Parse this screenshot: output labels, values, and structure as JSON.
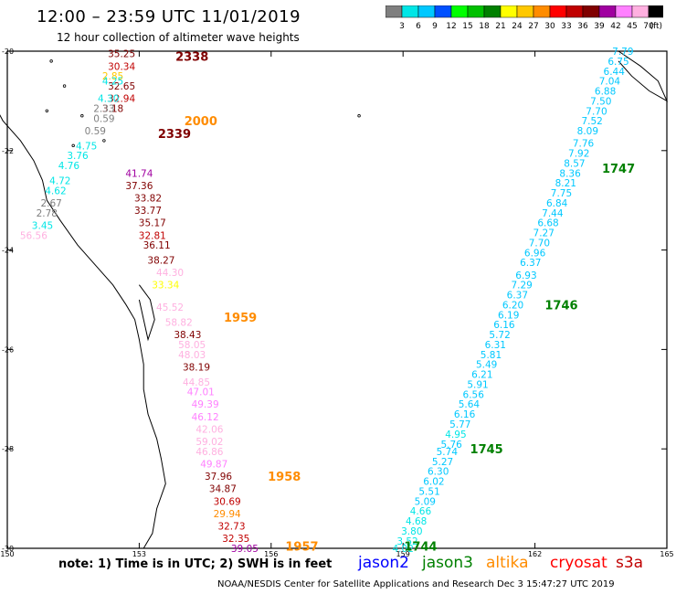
{
  "header": {
    "title": "12:00 – 23:59 UTC 11/01/2019",
    "subtitle": "12 hour collection of altimeter wave heights"
  },
  "scale": {
    "unit": "(ft)",
    "ticks": [
      "3",
      "6",
      "9",
      "12",
      "15",
      "18",
      "21",
      "24",
      "27",
      "30",
      "33",
      "36",
      "39",
      "42",
      "45",
      "70"
    ],
    "colors": [
      "#7f7f7f",
      "#00e6e6",
      "#00c8ff",
      "#0050ff",
      "#00ff00",
      "#00c000",
      "#008000",
      "#ffff00",
      "#ffc800",
      "#ff8c00",
      "#ff0000",
      "#c00000",
      "#800000",
      "#a000a0",
      "#ff80ff",
      "#ffb0e0",
      "#000000"
    ]
  },
  "axes": {
    "x_ticks": [
      "150",
      "153",
      "156",
      "159",
      "162",
      "165"
    ],
    "y_ticks": [
      "-20",
      "-22",
      "-24",
      "-26",
      "-28",
      "-30"
    ]
  },
  "tracks": [
    {
      "label": "2338",
      "color": "#800000",
      "lon": 154.2,
      "lat": -20.1,
      "points": [
        {
          "v": "35.25",
          "c": "#800000",
          "lon": 152.6,
          "lat": -20.05
        },
        {
          "v": "30.34",
          "c": "#c00000",
          "lon": 152.6,
          "lat": -20.3
        },
        {
          "v": "32.65",
          "c": "#800000",
          "lon": 152.6,
          "lat": -20.7
        },
        {
          "v": "32.94",
          "c": "#c00000",
          "lon": 152.6,
          "lat": -20.95
        },
        {
          "v": "3.18",
          "c": "#800000",
          "lon": 152.4,
          "lat": -21.15
        }
      ]
    },
    {
      "label": "2339",
      "color": "#800000",
      "lon": 153.8,
      "lat": -21.65,
      "points": [
        {
          "v": "41.74",
          "c": "#a000a0",
          "lon": 153.0,
          "lat": -22.45
        },
        {
          "v": "37.36",
          "c": "#800000",
          "lon": 153.0,
          "lat": -22.7
        },
        {
          "v": "33.82",
          "c": "#800000",
          "lon": 153.2,
          "lat": -22.95
        },
        {
          "v": "33.77",
          "c": "#800000",
          "lon": 153.2,
          "lat": -23.2
        },
        {
          "v": "35.17",
          "c": "#800000",
          "lon": 153.3,
          "lat": -23.45
        },
        {
          "v": "32.81",
          "c": "#c00000",
          "lon": 153.3,
          "lat": -23.7
        },
        {
          "v": "36.11",
          "c": "#800000",
          "lon": 153.4,
          "lat": -23.9
        },
        {
          "v": "38.27",
          "c": "#800000",
          "lon": 153.5,
          "lat": -24.2
        }
      ]
    },
    {
      "label": "2000",
      "color": "#ff8c00",
      "lon": 154.4,
      "lat": -21.4,
      "points": [
        {
          "v": "2.85",
          "c": "#ffc800",
          "lon": 152.4,
          "lat": -20.5
        },
        {
          "v": "4.25",
          "c": "#00e6e6",
          "lon": 152.4,
          "lat": -20.6
        },
        {
          "v": "4.30",
          "c": "#00e6e6",
          "lon": 152.3,
          "lat": -20.95
        },
        {
          "v": "2.33",
          "c": "#7f7f7f",
          "lon": 152.2,
          "lat": -21.15
        },
        {
          "v": "0.59",
          "c": "#7f7f7f",
          "lon": 152.2,
          "lat": -21.35
        },
        {
          "v": "0.59",
          "c": "#7f7f7f",
          "lon": 152.0,
          "lat": -21.6
        },
        {
          "v": "4.75",
          "c": "#00e6e6",
          "lon": 151.8,
          "lat": -21.9
        },
        {
          "v": "3.76",
          "c": "#00e6e6",
          "lon": 151.6,
          "lat": -22.1
        },
        {
          "v": "4.76",
          "c": "#00e6e6",
          "lon": 151.4,
          "lat": -22.3
        },
        {
          "v": "4.72",
          "c": "#00e6e6",
          "lon": 151.2,
          "lat": -22.6
        },
        {
          "v": "4.62",
          "c": "#00e6e6",
          "lon": 151.1,
          "lat": -22.8
        },
        {
          "v": "2.67",
          "c": "#7f7f7f",
          "lon": 151.0,
          "lat": -23.05
        },
        {
          "v": "2.78",
          "c": "#7f7f7f",
          "lon": 150.9,
          "lat": -23.25
        },
        {
          "v": "3.45",
          "c": "#00e6e6",
          "lon": 150.8,
          "lat": -23.5
        },
        {
          "v": "56.56",
          "c": "#ffb0e0",
          "lon": 150.6,
          "lat": -23.7
        }
      ]
    },
    {
      "label": "1959",
      "color": "#ff8c00",
      "lon": 155.3,
      "lat": -25.35,
      "points": [
        {
          "v": "44.30",
          "c": "#ffb0e0",
          "lon": 153.7,
          "lat": -24.45
        },
        {
          "v": "33.34",
          "c": "#ffff00",
          "lon": 153.6,
          "lat": -24.7
        },
        {
          "v": "45.52",
          "c": "#ffb0e0",
          "lon": 153.7,
          "lat": -25.15
        },
        {
          "v": "58.82",
          "c": "#ffb0e0",
          "lon": 153.9,
          "lat": -25.45
        },
        {
          "v": "38.43",
          "c": "#800000",
          "lon": 154.1,
          "lat": -25.7
        },
        {
          "v": "58.05",
          "c": "#ffb0e0",
          "lon": 154.2,
          "lat": -25.9
        },
        {
          "v": "48.03",
          "c": "#ffb0e0",
          "lon": 154.2,
          "lat": -26.1
        },
        {
          "v": "38.19",
          "c": "#800000",
          "lon": 154.3,
          "lat": -26.35
        },
        {
          "v": "44.85",
          "c": "#ffb0e0",
          "lon": 154.3,
          "lat": -26.65
        },
        {
          "v": "47.01",
          "c": "#ff80ff",
          "lon": 154.4,
          "lat": -26.85
        },
        {
          "v": "49.39",
          "c": "#ff80ff",
          "lon": 154.5,
          "lat": -27.1
        },
        {
          "v": "46.12",
          "c": "#ff80ff",
          "lon": 154.5,
          "lat": -27.35
        },
        {
          "v": "42.06",
          "c": "#ffb0e0",
          "lon": 154.6,
          "lat": -27.6
        },
        {
          "v": "59.02",
          "c": "#ffb0e0",
          "lon": 154.6,
          "lat": -27.85
        },
        {
          "v": "46.86",
          "c": "#ffb0e0",
          "lon": 154.6,
          "lat": -28.05
        },
        {
          "v": "49.87",
          "c": "#ff80ff",
          "lon": 154.7,
          "lat": -28.3
        }
      ]
    },
    {
      "label": "1958",
      "color": "#ff8c00",
      "lon": 156.3,
      "lat": -28.55,
      "points": [
        {
          "v": "37.96",
          "c": "#800000",
          "lon": 154.8,
          "lat": -28.55
        },
        {
          "v": "34.87",
          "c": "#800000",
          "lon": 154.9,
          "lat": -28.8
        },
        {
          "v": "30.69",
          "c": "#c00000",
          "lon": 155.0,
          "lat": -29.05
        },
        {
          "v": "29.94",
          "c": "#ff8c00",
          "lon": 155.0,
          "lat": -29.3
        }
      ]
    },
    {
      "label": "1957",
      "color": "#ff8c00",
      "lon": 156.7,
      "lat": -29.95,
      "points": [
        {
          "v": "32.73",
          "c": "#c00000",
          "lon": 155.1,
          "lat": -29.55
        },
        {
          "v": "32.35",
          "c": "#c00000",
          "lon": 155.2,
          "lat": -29.8
        },
        {
          "v": "39.05",
          "c": "#a000a0",
          "lon": 155.4,
          "lat": -30.0
        }
      ]
    },
    {
      "label": "1747",
      "color": "#008000",
      "lon": 163.9,
      "lat": -22.35,
      "points": [
        {
          "v": "7.79",
          "c": "#00c8ff",
          "lon": 164.0,
          "lat": -20.0
        },
        {
          "v": "6.75",
          "c": "#00c8ff",
          "lon": 163.9,
          "lat": -20.2
        },
        {
          "v": "6.44",
          "c": "#00c8ff",
          "lon": 163.8,
          "lat": -20.4
        },
        {
          "v": "7.04",
          "c": "#00c8ff",
          "lon": 163.7,
          "lat": -20.6
        },
        {
          "v": "6.88",
          "c": "#00c8ff",
          "lon": 163.6,
          "lat": -20.8
        },
        {
          "v": "7.50",
          "c": "#00c8ff",
          "lon": 163.5,
          "lat": -21.0
        },
        {
          "v": "7.70",
          "c": "#00c8ff",
          "lon": 163.4,
          "lat": -21.2
        },
        {
          "v": "7.52",
          "c": "#00c8ff",
          "lon": 163.3,
          "lat": -21.4
        },
        {
          "v": "8.09",
          "c": "#00c8ff",
          "lon": 163.2,
          "lat": -21.6
        },
        {
          "v": "7.76",
          "c": "#00c8ff",
          "lon": 163.1,
          "lat": -21.85
        },
        {
          "v": "7.92",
          "c": "#00c8ff",
          "lon": 163.0,
          "lat": -22.05
        },
        {
          "v": "8.57",
          "c": "#00c8ff",
          "lon": 162.9,
          "lat": -22.25
        },
        {
          "v": "8.36",
          "c": "#00c8ff",
          "lon": 162.8,
          "lat": -22.45
        },
        {
          "v": "8.21",
          "c": "#00c8ff",
          "lon": 162.7,
          "lat": -22.65
        },
        {
          "v": "7.75",
          "c": "#00c8ff",
          "lon": 162.6,
          "lat": -22.85
        },
        {
          "v": "6.84",
          "c": "#00c8ff",
          "lon": 162.5,
          "lat": -23.05
        },
        {
          "v": "7.44",
          "c": "#00c8ff",
          "lon": 162.4,
          "lat": -23.25
        },
        {
          "v": "6.68",
          "c": "#00c8ff",
          "lon": 162.3,
          "lat": -23.45
        }
      ]
    },
    {
      "label": "1746",
      "color": "#008000",
      "lon": 162.6,
      "lat": -25.1,
      "points": [
        {
          "v": "7.27",
          "c": "#00c8ff",
          "lon": 162.2,
          "lat": -23.65
        },
        {
          "v": "7.70",
          "c": "#00c8ff",
          "lon": 162.1,
          "lat": -23.85
        },
        {
          "v": "6.96",
          "c": "#00c8ff",
          "lon": 162.0,
          "lat": -24.05
        },
        {
          "v": "6.37",
          "c": "#00c8ff",
          "lon": 161.9,
          "lat": -24.25
        },
        {
          "v": "6.93",
          "c": "#00c8ff",
          "lon": 161.8,
          "lat": -24.5
        },
        {
          "v": "7.29",
          "c": "#00c8ff",
          "lon": 161.7,
          "lat": -24.7
        },
        {
          "v": "6.37",
          "c": "#00c8ff",
          "lon": 161.6,
          "lat": -24.9
        },
        {
          "v": "6.20",
          "c": "#00c8ff",
          "lon": 161.5,
          "lat": -25.1
        },
        {
          "v": "6.19",
          "c": "#00c8ff",
          "lon": 161.4,
          "lat": -25.3
        },
        {
          "v": "6.16",
          "c": "#00c8ff",
          "lon": 161.3,
          "lat": -25.5
        },
        {
          "v": "5.72",
          "c": "#00c8ff",
          "lon": 161.2,
          "lat": -25.7
        },
        {
          "v": "6.31",
          "c": "#00c8ff",
          "lon": 161.1,
          "lat": -25.9
        },
        {
          "v": "5.81",
          "c": "#00c8ff",
          "lon": 161.0,
          "lat": -26.1
        },
        {
          "v": "5.49",
          "c": "#00c8ff",
          "lon": 160.9,
          "lat": -26.3
        },
        {
          "v": "6.21",
          "c": "#00c8ff",
          "lon": 160.8,
          "lat": -26.5
        }
      ]
    },
    {
      "label": "1745",
      "color": "#008000",
      "lon": 160.9,
      "lat": -28.0,
      "points": [
        {
          "v": "5.91",
          "c": "#00c8ff",
          "lon": 160.7,
          "lat": -26.7
        },
        {
          "v": "6.56",
          "c": "#00c8ff",
          "lon": 160.6,
          "lat": -26.9
        },
        {
          "v": "5.64",
          "c": "#00c8ff",
          "lon": 160.5,
          "lat": -27.1
        },
        {
          "v": "6.16",
          "c": "#00c8ff",
          "lon": 160.4,
          "lat": -27.3
        },
        {
          "v": "5.77",
          "c": "#00c8ff",
          "lon": 160.3,
          "lat": -27.5
        },
        {
          "v": "4.95",
          "c": "#00e6e6",
          "lon": 160.2,
          "lat": -27.7
        },
        {
          "v": "5.76",
          "c": "#00c8ff",
          "lon": 160.1,
          "lat": -27.9
        },
        {
          "v": "5.74",
          "c": "#00c8ff",
          "lon": 160.0,
          "lat": -28.05
        },
        {
          "v": "5.27",
          "c": "#00c8ff",
          "lon": 159.9,
          "lat": -28.25
        },
        {
          "v": "6.30",
          "c": "#00c8ff",
          "lon": 159.8,
          "lat": -28.45
        },
        {
          "v": "6.02",
          "c": "#00c8ff",
          "lon": 159.7,
          "lat": -28.65
        }
      ]
    },
    {
      "label": "1744",
      "color": "#008000",
      "lon": 159.4,
      "lat": -29.95,
      "points": [
        {
          "v": "5.51",
          "c": "#00c8ff",
          "lon": 159.6,
          "lat": -28.85
        },
        {
          "v": "5.09",
          "c": "#00c8ff",
          "lon": 159.5,
          "lat": -29.05
        },
        {
          "v": "4.66",
          "c": "#00e6e6",
          "lon": 159.4,
          "lat": -29.25
        },
        {
          "v": "4.68",
          "c": "#00e6e6",
          "lon": 159.3,
          "lat": -29.45
        },
        {
          "v": "3.80",
          "c": "#00e6e6",
          "lon": 159.2,
          "lat": -29.65
        },
        {
          "v": "3.52",
          "c": "#00e6e6",
          "lon": 159.1,
          "lat": -29.85
        },
        {
          "v": "4.02",
          "c": "#00e6e6",
          "lon": 159.0,
          "lat": -30.0
        }
      ]
    }
  ],
  "footer": {
    "note": "note: 1) Time is in UTC; 2) SWH is in feet",
    "satellites": [
      {
        "name": "jason2",
        "color": "#0000ff"
      },
      {
        "name": "jason3",
        "color": "#008000"
      },
      {
        "name": "altika",
        "color": "#ff8c00"
      },
      {
        "name": "cryosat",
        "color": "#ff0000"
      },
      {
        "name": "s3a",
        "color": "#c00000"
      }
    ],
    "credit": "NOAA/NESDIS Center for Satellite Applications and Research   Dec  3 15:47:27 UTC 2019"
  }
}
